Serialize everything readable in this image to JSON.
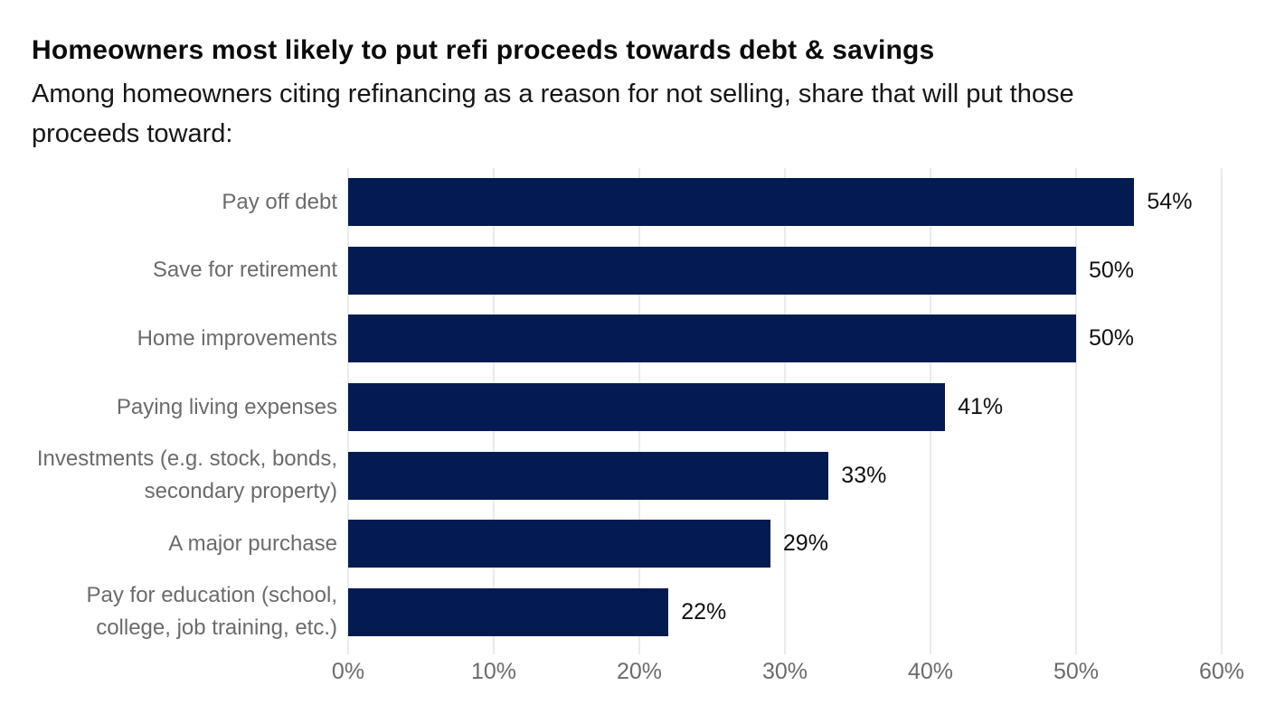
{
  "header": {
    "title": "Homeowners most likely to put refi proceeds towards debt & savings",
    "subtitle": "Among homeowners citing refinancing as a reason for not selling, share that will put those proceeds toward:"
  },
  "chart_data": {
    "type": "bar",
    "orientation": "horizontal",
    "title": "Homeowners most likely to put refi proceeds towards debt & savings",
    "subtitle": "Among homeowners citing refinancing as a reason for not selling, share that will put those proceeds toward:",
    "categories": [
      "Pay off debt",
      "Save for retirement",
      "Home improvements",
      "Paying living expenses",
      "Investments (e.g. stock, bonds, secondary property)",
      "A major purchase",
      "Pay for education (school, college, job training, etc.)"
    ],
    "values": [
      54,
      50,
      50,
      41,
      33,
      29,
      22
    ],
    "value_labels": [
      "54%",
      "50%",
      "50%",
      "41%",
      "33%",
      "29%",
      "22%"
    ],
    "xlabel": "",
    "ylabel": "",
    "xlim": [
      0,
      60
    ],
    "x_ticks": [
      "0%",
      "10%",
      "20%",
      "30%",
      "40%",
      "50%",
      "60%"
    ],
    "grid": "vertical",
    "legend": "none",
    "colors": {
      "bar": "#041b52",
      "category_label": "#6b6b6b",
      "value_label": "#111111",
      "axis_label": "#6b6b6b",
      "gridline": "#ebebeb",
      "title": "#0b0b0b",
      "subtitle": "#161616"
    }
  }
}
